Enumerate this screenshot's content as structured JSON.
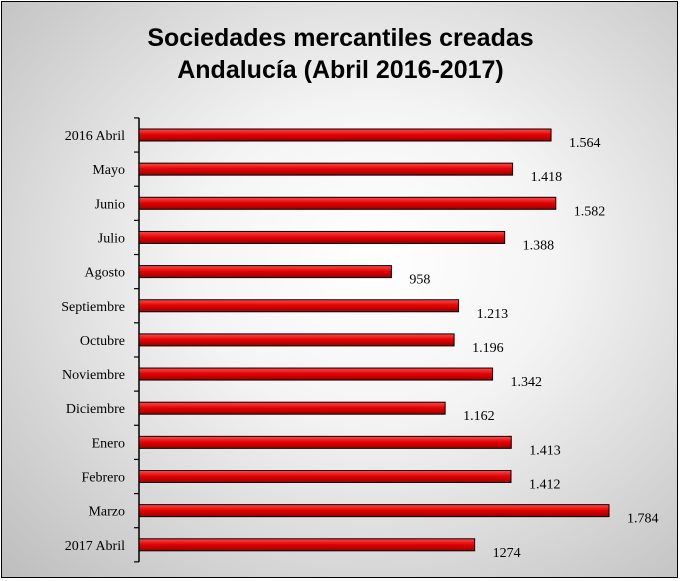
{
  "chart_data": {
    "type": "bar",
    "orientation": "horizontal",
    "title": [
      "Sociedades mercantiles creadas",
      "Andalucía (Abril  2016-2017)"
    ],
    "categories": [
      "2016 Abril",
      "Mayo",
      "Junio",
      "Julio",
      "Agosto",
      "Septiembre",
      "Octubre",
      "Noviembre",
      "Diciembre",
      "Enero",
      "Febrero",
      "Marzo",
      "2017 Abril"
    ],
    "values": [
      1564,
      1418,
      1582,
      1388,
      958,
      1213,
      1196,
      1342,
      1162,
      1413,
      1412,
      1784,
      1274
    ],
    "value_labels": [
      "1.564",
      "1.418",
      "1.582",
      "1.388",
      "958",
      "1.213",
      "1.196",
      "1.342",
      "1.162",
      "1.413",
      "1.412",
      "1.784",
      "1274"
    ],
    "bar_color": "#e00000",
    "bar_edge_color": "#000000",
    "stray_mark": "º",
    "xlim": [
      0,
      1784
    ],
    "grid": false,
    "legend": "none"
  }
}
